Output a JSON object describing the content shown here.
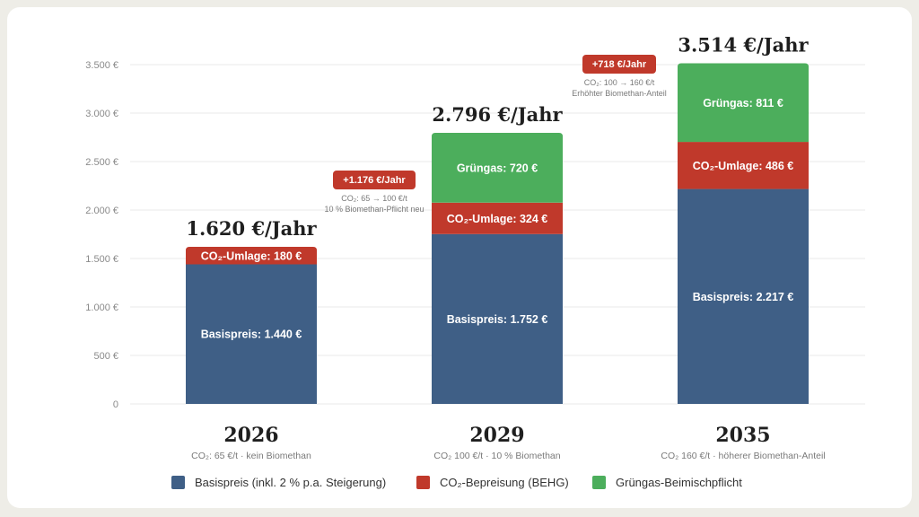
{
  "colors": {
    "basis": "#3f5f86",
    "co2": "#c0392b",
    "gruen": "#4cae5c"
  },
  "chart_data": {
    "type": "bar",
    "stacked": true,
    "ylim": [
      0,
      3500
    ],
    "y_ticks": [
      0,
      500,
      1000,
      1500,
      2000,
      2500,
      3000,
      3500
    ],
    "y_tick_labels": [
      "0",
      "500 €",
      "1.000 €",
      "1.500 €",
      "2.000 €",
      "2.500 €",
      "3.000 €",
      "3.500 €"
    ],
    "grid": true,
    "legend_position": "bottom",
    "categories": [
      "2026",
      "2029",
      "2035"
    ],
    "category_subtitles": [
      "CO₂: 65 €/t · kein Biomethan",
      "CO₂ 100 €/t · 10 % Biomethan",
      "CO₂ 160 €/t · höherer Biomethan-Anteil"
    ],
    "totals": [
      "1.620 €/Jahr",
      "2.796 €/Jahr",
      "3.514 €/Jahr"
    ],
    "series": [
      {
        "name": "Basispreis (inkl. 2 % p.a. Steigerung)",
        "key": "basis",
        "values": [
          1440,
          1752,
          2217
        ],
        "labels": [
          "Basispreis: 1.440 €",
          "Basispreis: 1.752 €",
          "Basispreis: 2.217 €"
        ]
      },
      {
        "name": "CO₂-Bepreisung (BEHG)",
        "key": "co2",
        "values": [
          180,
          324,
          486
        ],
        "labels": [
          "CO₂-Umlage: 180 €",
          "CO₂-Umlage: 324 €",
          "CO₂-Umlage: 486 €"
        ]
      },
      {
        "name": "Grüngas-Beimischpflicht",
        "key": "gruen",
        "values": [
          0,
          720,
          811
        ],
        "labels": [
          "",
          "Grüngas: 720 €",
          "Grüngas: 811 €"
        ]
      }
    ],
    "annotations": [
      {
        "badge": "+1.176 €/Jahr",
        "lines": [
          "CO₂: 65 → 100 €/t",
          "10 % Biomethan-Pflicht neu"
        ]
      },
      {
        "badge": "+718 €/Jahr",
        "lines": [
          "CO₂: 100 → 160 €/t",
          "Erhöhter Biomethan-Anteil"
        ]
      }
    ]
  }
}
